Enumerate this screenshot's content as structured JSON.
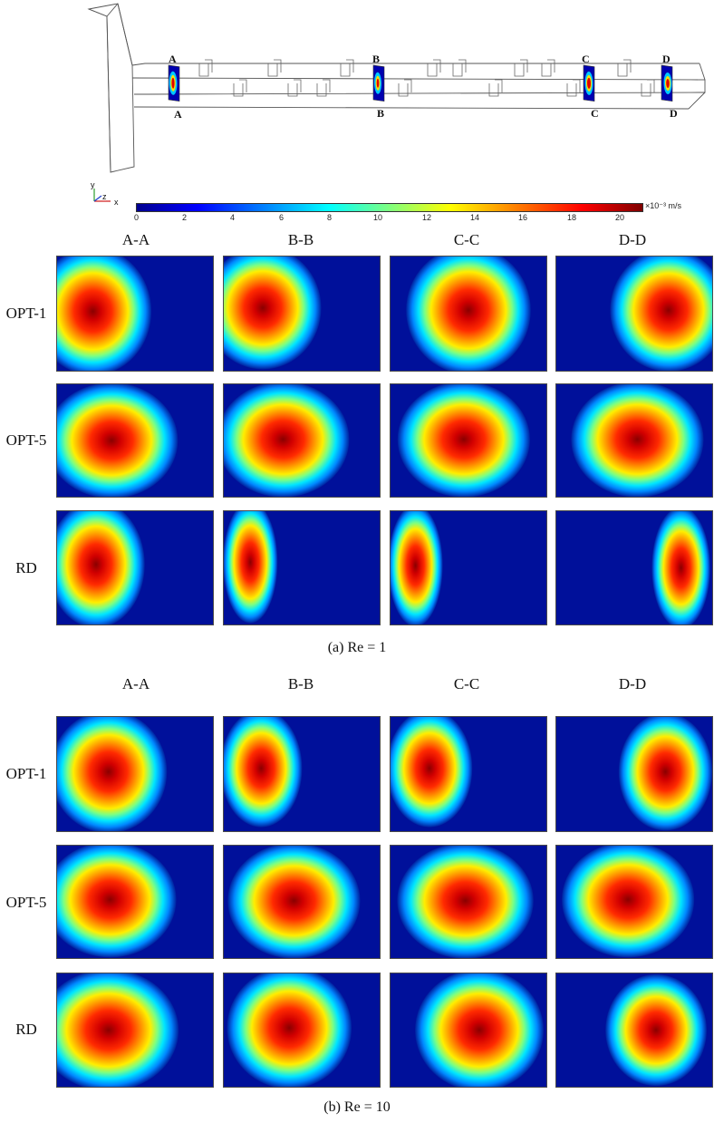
{
  "geometry": {
    "top_labels": [
      "A",
      "B",
      "C",
      "D"
    ],
    "bottom_labels": [
      "A",
      "B",
      "C",
      "D"
    ],
    "axes": {
      "y": "y",
      "z": "z",
      "x": "x"
    }
  },
  "colorbar": {
    "ticks": [
      "0",
      "2",
      "4",
      "6",
      "8",
      "10",
      "12",
      "14",
      "16",
      "18",
      "20"
    ],
    "unit": "×10⁻³  m/s",
    "min": 0,
    "max": 21,
    "colors": [
      "#00008f",
      "#0000ff",
      "#007fff",
      "#00ffff",
      "#7fff7f",
      "#ffff00",
      "#ff7f00",
      "#ff0000",
      "#7f0000"
    ]
  },
  "figure_a": {
    "columns": [
      "A-A",
      "B-B",
      "C-C",
      "D-D"
    ],
    "rows": [
      "OPT-1",
      "OPT-5",
      "RD"
    ],
    "caption": "(a) Re = 1"
  },
  "figure_b": {
    "columns": [
      "A-A",
      "B-B",
      "C-C",
      "D-D"
    ],
    "rows": [
      "OPT-1",
      "OPT-5",
      "RD"
    ],
    "caption": "(b) Re = 10"
  }
}
